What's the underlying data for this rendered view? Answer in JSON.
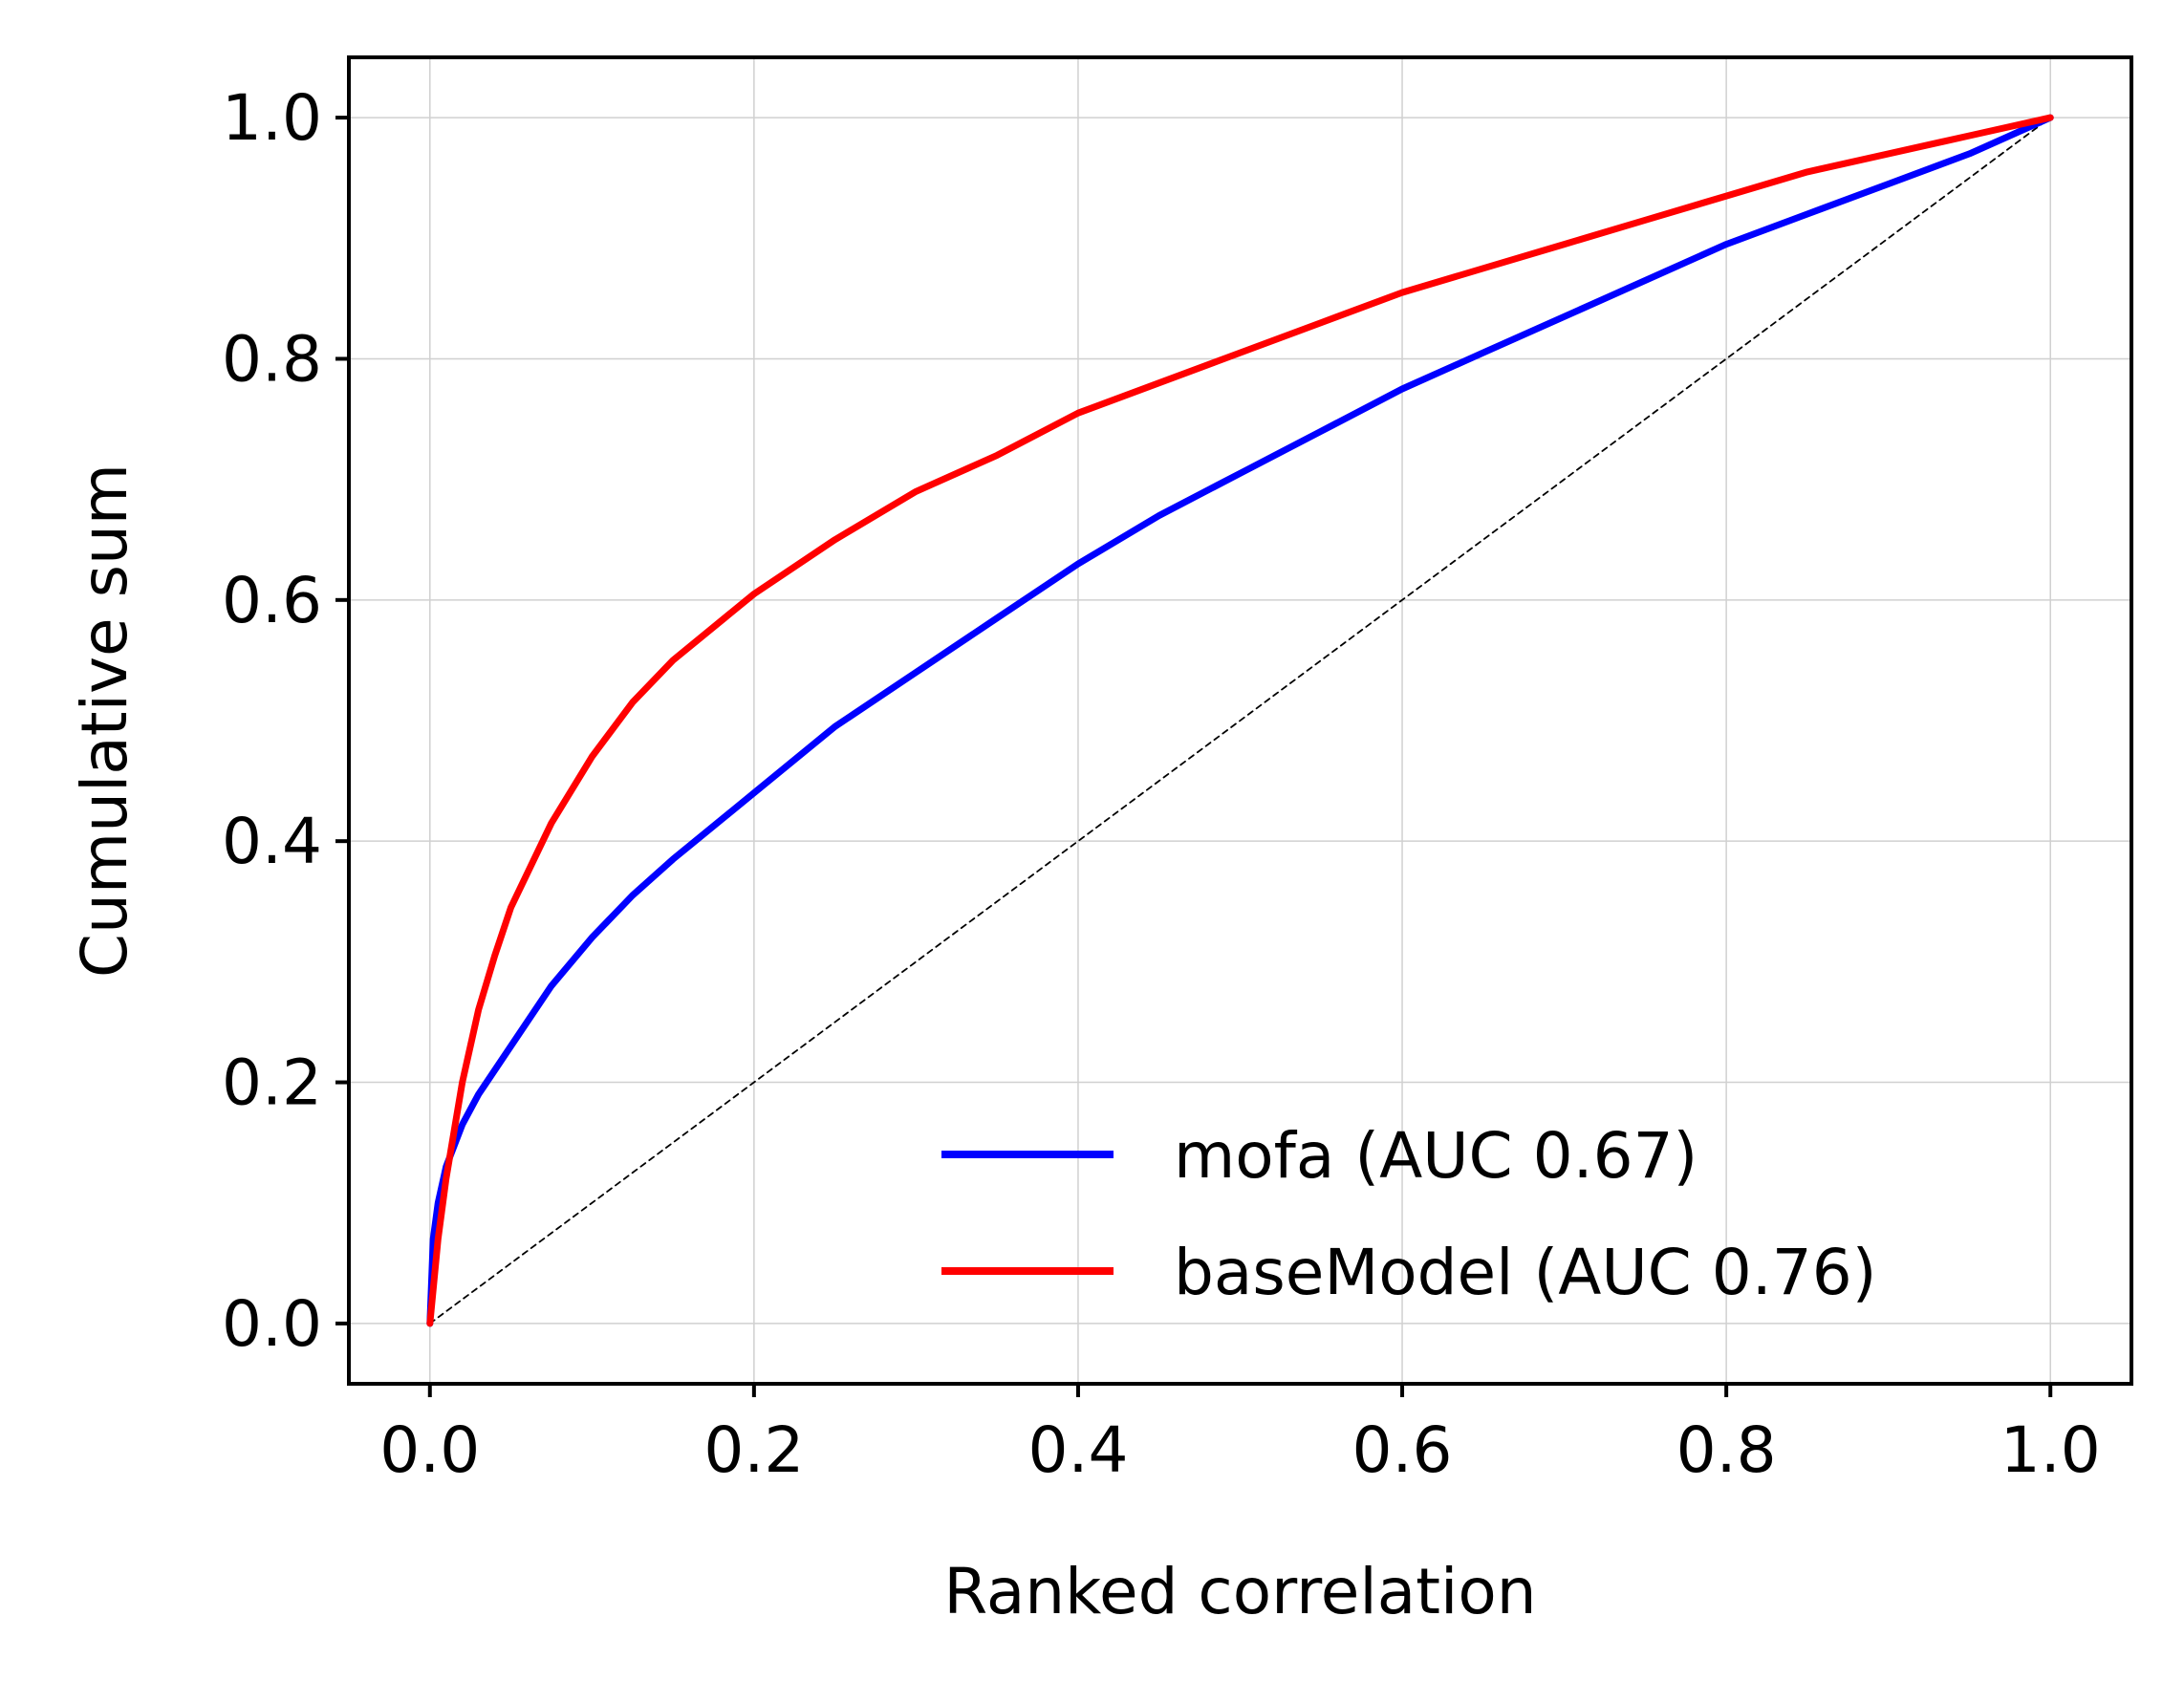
{
  "chart_data": {
    "type": "line",
    "title": "",
    "xlabel": "Ranked correlation",
    "ylabel": "Cumulative sum",
    "xlim": [
      -0.05,
      1.05
    ],
    "ylim": [
      -0.05,
      1.05
    ],
    "xticks": [
      0.0,
      0.2,
      0.4,
      0.6,
      0.8,
      1.0
    ],
    "yticks": [
      0.0,
      0.2,
      0.4,
      0.6,
      0.8,
      1.0
    ],
    "xtick_labels": [
      "0.0",
      "0.2",
      "0.4",
      "0.6",
      "0.8",
      "1.0"
    ],
    "ytick_labels": [
      "0.0",
      "0.2",
      "0.4",
      "0.6",
      "0.8",
      "1.0"
    ],
    "grid": true,
    "legend_position": "lower-right",
    "series": [
      {
        "name": "mofa (AUC 0.67)",
        "color": "#0000ff",
        "x": [
          0.0,
          0.002,
          0.005,
          0.01,
          0.02,
          0.03,
          0.05,
          0.075,
          0.1,
          0.125,
          0.15,
          0.2,
          0.25,
          0.3,
          0.35,
          0.4,
          0.45,
          0.5,
          0.55,
          0.6,
          0.65,
          0.7,
          0.75,
          0.8,
          0.85,
          0.9,
          0.95,
          1.0
        ],
        "y": [
          0.0,
          0.07,
          0.1,
          0.13,
          0.165,
          0.19,
          0.23,
          0.28,
          0.32,
          0.355,
          0.385,
          0.44,
          0.495,
          0.54,
          0.585,
          0.63,
          0.67,
          0.705,
          0.74,
          0.775,
          0.805,
          0.835,
          0.865,
          0.895,
          0.92,
          0.945,
          0.97,
          1.0
        ]
      },
      {
        "name": "baseModel (AUC 0.76)",
        "color": "#ff0000",
        "x": [
          0.0,
          0.005,
          0.01,
          0.015,
          0.02,
          0.03,
          0.04,
          0.05,
          0.075,
          0.1,
          0.125,
          0.15,
          0.2,
          0.25,
          0.3,
          0.35,
          0.4,
          0.45,
          0.5,
          0.55,
          0.6,
          0.65,
          0.7,
          0.75,
          0.8,
          0.85,
          0.9,
          0.95,
          1.0
        ],
        "y": [
          0.0,
          0.07,
          0.12,
          0.16,
          0.2,
          0.26,
          0.305,
          0.345,
          0.415,
          0.47,
          0.515,
          0.55,
          0.605,
          0.65,
          0.69,
          0.72,
          0.755,
          0.78,
          0.805,
          0.83,
          0.855,
          0.875,
          0.895,
          0.915,
          0.935,
          0.955,
          0.97,
          0.985,
          1.0
        ]
      },
      {
        "name": "",
        "color": "#000000",
        "style": "dashed",
        "x": [
          0.0,
          1.0
        ],
        "y": [
          0.0,
          1.0
        ]
      }
    ]
  }
}
